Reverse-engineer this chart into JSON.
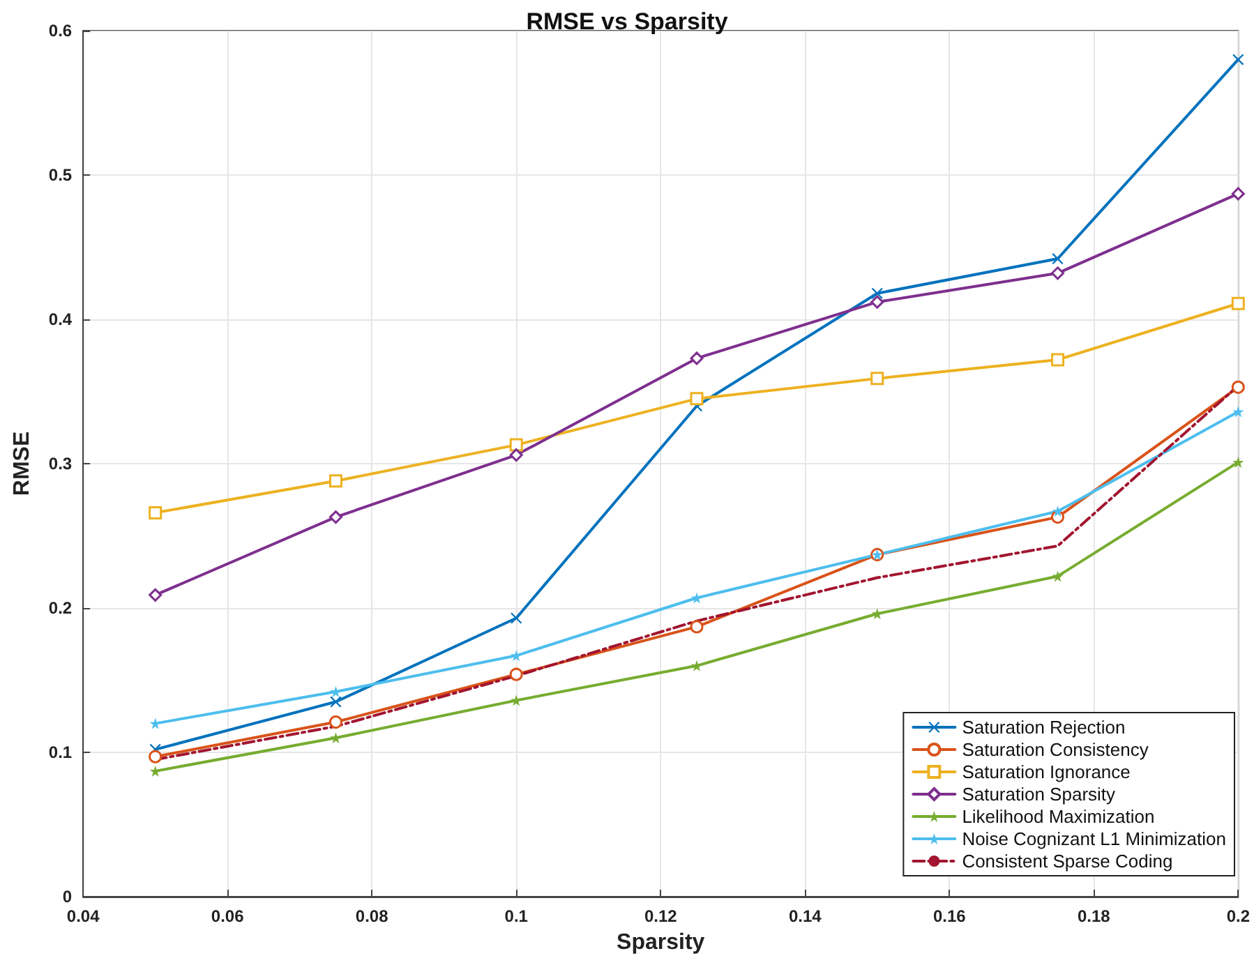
{
  "chart_data": {
    "type": "line",
    "title": "RMSE vs Sparsity",
    "xlabel": "Sparsity",
    "ylabel": "RMSE",
    "x": [
      0.05,
      0.075,
      0.1,
      0.125,
      0.15,
      0.175,
      0.2
    ],
    "series": [
      {
        "name": "Saturation Rejection",
        "color": "#0072bd",
        "marker": "cross",
        "values": [
          0.102,
          0.135,
          0.193,
          0.34,
          0.418,
          0.442,
          0.58
        ]
      },
      {
        "name": "Saturation Consistency",
        "color": "#d95319",
        "marker": "circle",
        "values": [
          0.097,
          0.121,
          0.154,
          0.187,
          0.237,
          0.263,
          0.353
        ]
      },
      {
        "name": "Saturation Ignorance",
        "color": "#edb120",
        "marker": "square",
        "values": [
          0.266,
          0.288,
          0.313,
          0.345,
          0.359,
          0.372,
          0.411
        ]
      },
      {
        "name": "Saturation Sparsity",
        "color": "#7e2f8e",
        "marker": "diamond",
        "values": [
          0.209,
          0.263,
          0.306,
          0.373,
          0.412,
          0.432,
          0.487
        ]
      },
      {
        "name": "Likelihood Maximization",
        "color": "#77ac30",
        "marker": "star",
        "values": [
          0.087,
          0.11,
          0.136,
          0.16,
          0.196,
          0.222,
          0.301
        ]
      },
      {
        "name": "Noise Cognizant L1 Minimization",
        "color": "#4dbeee",
        "marker": "star",
        "values": [
          0.12,
          0.142,
          0.167,
          0.207,
          0.237,
          0.267,
          0.336
        ]
      },
      {
        "name": "Consistent Sparse Coding",
        "color": "#a2142f",
        "marker": "none",
        "line_style": "dashed",
        "values": [
          0.095,
          0.118,
          0.153,
          0.191,
          0.221,
          0.243,
          0.354
        ]
      }
    ],
    "xlim": [
      0.04,
      0.2
    ],
    "xticks": [
      0.04,
      0.06,
      0.08,
      0.1,
      0.12,
      0.14,
      0.16,
      0.18,
      0.2
    ],
    "ylim": [
      0,
      0.6
    ],
    "yticks": [
      0,
      0.1,
      0.2,
      0.3,
      0.4,
      0.5,
      0.6
    ],
    "grid": true,
    "legend": "bottom right",
    "line_style": "solid"
  }
}
